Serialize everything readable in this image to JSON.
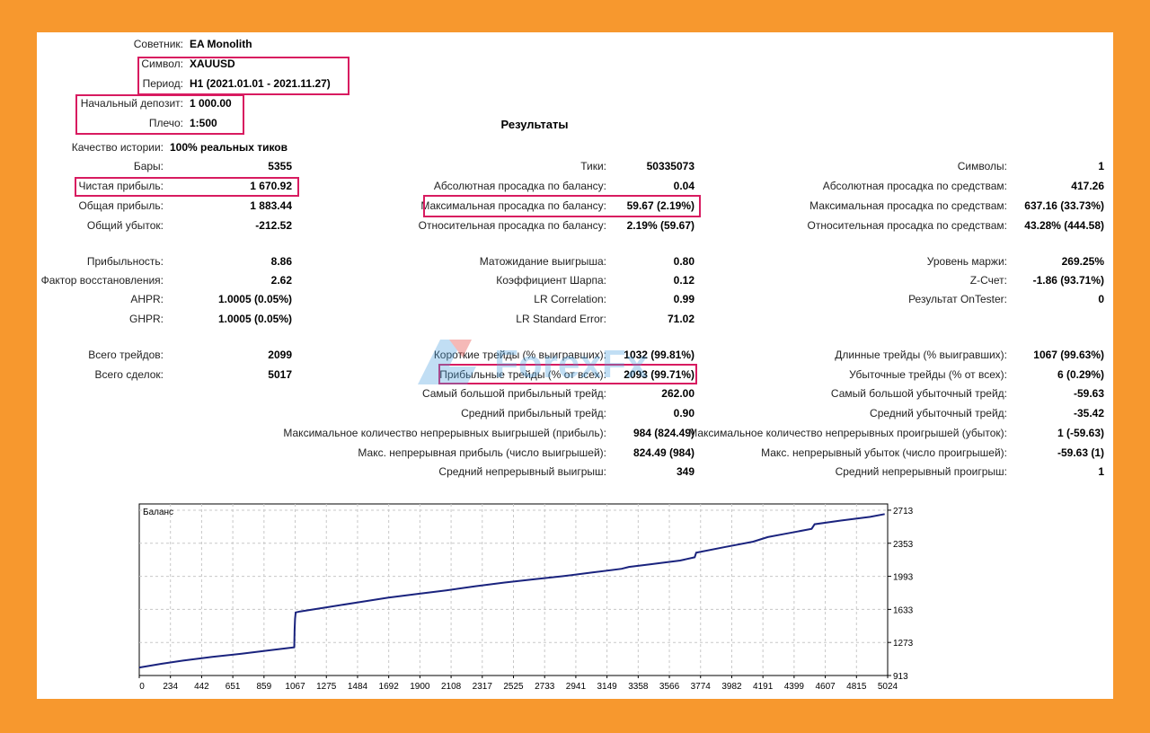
{
  "header": {
    "expert_label": "Советник:",
    "expert_value": "EA Monolith",
    "symbol_label": "Символ:",
    "symbol_value": "XAUUSD",
    "period_label": "Период:",
    "period_value": "H1 (2021.01.01 - 2021.11.27)",
    "deposit_label": "Начальный депозит:",
    "deposit_value": "1 000.00",
    "leverage_label": "Плечо:",
    "leverage_value": "1:500"
  },
  "results_title": "Результаты",
  "history_quality": {
    "label": "Качество истории:",
    "value": "100% реальных тиков"
  },
  "col1": [
    {
      "label": "Бары:",
      "value": "5355"
    },
    {
      "label": "Чистая прибыль:",
      "value": "1 670.92"
    },
    {
      "label": "Общая прибыль:",
      "value": "1 883.44"
    },
    {
      "label": "Общий убыток:",
      "value": "-212.52"
    },
    {
      "label": "Прибыльность:",
      "value": "8.86"
    },
    {
      "label": "Фактор восстановления:",
      "value": "2.62"
    },
    {
      "label": "AHPR:",
      "value": "1.0005 (0.05%)"
    },
    {
      "label": "GHPR:",
      "value": "1.0005 (0.05%)"
    },
    {
      "label": "Всего трейдов:",
      "value": "2099"
    },
    {
      "label": "Всего сделок:",
      "value": "5017"
    }
  ],
  "col2": [
    {
      "label": "Тики:",
      "value": "50335073"
    },
    {
      "label": "Абсолютная просадка по балансу:",
      "value": "0.04"
    },
    {
      "label": "Максимальная просадка по балансу:",
      "value": "59.67 (2.19%)"
    },
    {
      "label": "Относительная просадка по балансу:",
      "value": "2.19% (59.67)"
    },
    {
      "label": "Матожидание выигрыша:",
      "value": "0.80"
    },
    {
      "label": "Коэффициент Шарпа:",
      "value": "0.12"
    },
    {
      "label": "LR Correlation:",
      "value": "0.99"
    },
    {
      "label": "LR Standard Error:",
      "value": "71.02"
    },
    {
      "label": "Короткие трейды (% выигравших):",
      "value": "1032 (99.81%)"
    },
    {
      "label": "Прибыльные трейды (% от всех):",
      "value": "2093 (99.71%)"
    },
    {
      "label": "Самый большой прибыльный трейд:",
      "value": "262.00"
    },
    {
      "label": "Средний прибыльный трейд:",
      "value": "0.90"
    },
    {
      "label": "Максимальное количество непрерывных выигрышей (прибыль):",
      "value": "984 (824.49)"
    },
    {
      "label": "Макс. непрерывная прибыль (число выигрышей):",
      "value": "824.49 (984)"
    },
    {
      "label": "Средний непрерывный выигрыш:",
      "value": "349"
    }
  ],
  "col3": [
    {
      "label": "Символы:",
      "value": "1"
    },
    {
      "label": "Абсолютная просадка по средствам:",
      "value": "417.26"
    },
    {
      "label": "Максимальная просадка по средствам:",
      "value": "637.16 (33.73%)"
    },
    {
      "label": "Относительная просадка по средствам:",
      "value": "43.28% (444.58)"
    },
    {
      "label": "Уровень маржи:",
      "value": "269.25%"
    },
    {
      "label": "Z-Счет:",
      "value": "-1.86 (93.71%)"
    },
    {
      "label": "Результат OnTester:",
      "value": "0"
    },
    {
      "label": "Длинные трейды (% выигравших):",
      "value": "1067 (99.63%)"
    },
    {
      "label": "Убыточные трейды (% от всех):",
      "value": "6 (0.29%)"
    },
    {
      "label": "Самый большой убыточный трейд:",
      "value": "-59.63"
    },
    {
      "label": "Средний убыточный трейд:",
      "value": "-35.42"
    },
    {
      "label": "Максимальное количество непрерывных проигрышей (убыток):",
      "value": "1 (-59.63)"
    },
    {
      "label": "Макс. непрерывный убыток (число проигрышей):",
      "value": "-59.63 (1)"
    },
    {
      "label": "Средний непрерывный проигрыш:",
      "value": "1"
    }
  ],
  "colors": {
    "highlight": "#d81b60",
    "line": "#1a237e",
    "background": "#f7982e"
  },
  "chart_data": {
    "type": "line",
    "title": "Баланс",
    "x_ticks": [
      "0",
      "234",
      "442",
      "651",
      "859",
      "1067",
      "1275",
      "1484",
      "1692",
      "1900",
      "2108",
      "2317",
      "2525",
      "2733",
      "2941",
      "3149",
      "3358",
      "3566",
      "3774",
      "3982",
      "4191",
      "4399",
      "4607",
      "4815",
      "5024"
    ],
    "y_ticks": [
      "913",
      "1273",
      "1633",
      "1993",
      "2353",
      "2713"
    ],
    "xlim": [
      0,
      5120
    ],
    "ylim": [
      913,
      2781
    ],
    "series": [
      {
        "x": [
          0,
          150,
          300,
          500,
          700,
          900,
          1060,
          1063,
          1066,
          1070,
          1100,
          1300,
          1500,
          1700,
          1900,
          2100,
          2300,
          2500,
          2700,
          2900,
          3100,
          3300,
          3350,
          3500,
          3700,
          3800,
          3810,
          4000,
          4200,
          4300,
          4400,
          4500,
          4600,
          4620,
          4800,
          5000,
          5100
        ],
        "values": [
          1000,
          1040,
          1075,
          1115,
          1150,
          1190,
          1220,
          1410,
          1530,
          1600,
          1610,
          1660,
          1710,
          1760,
          1800,
          1840,
          1885,
          1925,
          1960,
          1995,
          2035,
          2075,
          2095,
          2125,
          2165,
          2200,
          2250,
          2310,
          2370,
          2420,
          2450,
          2480,
          2510,
          2560,
          2600,
          2640,
          2670
        ]
      }
    ],
    "grid": true
  }
}
